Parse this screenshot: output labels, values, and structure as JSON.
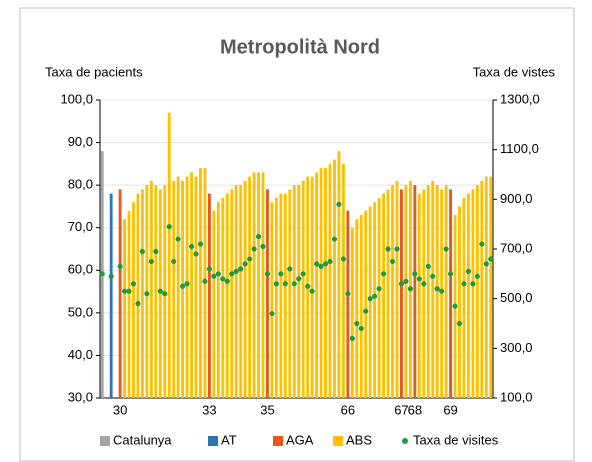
{
  "chart_data": {
    "type": "bar",
    "title": "Metropolità Nord",
    "y_label": "Taxa de pacients",
    "y2_label": "Taxa de vistes",
    "categories": [
      null,
      null,
      null,
      null,
      "30",
      null,
      null,
      null,
      null,
      null,
      null,
      null,
      null,
      null,
      null,
      null,
      null,
      null,
      null,
      null,
      null,
      null,
      null,
      null,
      "33",
      null,
      null,
      null,
      null,
      null,
      null,
      null,
      null,
      null,
      null,
      null,
      null,
      "35",
      null,
      null,
      null,
      null,
      null,
      null,
      null,
      null,
      null,
      null,
      null,
      null,
      null,
      null,
      null,
      null,
      null,
      "66",
      null,
      null,
      null,
      null,
      null,
      null,
      null,
      null,
      null,
      null,
      null,
      "67",
      null,
      null,
      "68",
      null,
      null,
      null,
      null,
      null,
      null,
      null,
      "69",
      null,
      null,
      null,
      null,
      null,
      null,
      null,
      null,
      null
    ],
    "series": [
      {
        "name": "Catalunya",
        "color": "#a5a5a5",
        "values": [
          88,
          null,
          null,
          null,
          null,
          null,
          null,
          null,
          null,
          null,
          null,
          null,
          null,
          null,
          null,
          null,
          null,
          null,
          null,
          null,
          null,
          null,
          null,
          null,
          null,
          null,
          null,
          null,
          null,
          null,
          null,
          null,
          null,
          null,
          null,
          null,
          null,
          null,
          null,
          null,
          null,
          null,
          null,
          null,
          null,
          null,
          null,
          null,
          null,
          null,
          null,
          null,
          null,
          null,
          null,
          null,
          null,
          null,
          null,
          null,
          null,
          null,
          null,
          null,
          null,
          null,
          null,
          null,
          null,
          null,
          null,
          null,
          null,
          null,
          null,
          null,
          null,
          null,
          null,
          null,
          null,
          null,
          null,
          null,
          null,
          null,
          null,
          null
        ]
      },
      {
        "name": "AT",
        "color": "#2e75b6",
        "values": [
          null,
          null,
          78,
          null,
          null,
          null,
          null,
          null,
          null,
          null,
          null,
          null,
          null,
          null,
          null,
          null,
          null,
          null,
          null,
          null,
          null,
          null,
          null,
          null,
          null,
          null,
          null,
          null,
          null,
          null,
          null,
          null,
          null,
          null,
          null,
          null,
          null,
          null,
          null,
          null,
          null,
          null,
          null,
          null,
          null,
          null,
          null,
          null,
          null,
          null,
          null,
          null,
          null,
          null,
          null,
          null,
          null,
          null,
          null,
          null,
          null,
          null,
          null,
          null,
          null,
          null,
          null,
          null,
          null,
          null,
          null,
          null,
          null,
          null,
          null,
          null,
          null,
          null,
          null,
          null,
          null,
          null,
          null,
          null,
          null,
          null,
          null,
          null
        ]
      },
      {
        "name": "AGA",
        "color": "#e8561e",
        "values": [
          null,
          null,
          null,
          null,
          79,
          null,
          null,
          null,
          null,
          null,
          null,
          null,
          null,
          null,
          null,
          null,
          null,
          null,
          null,
          null,
          null,
          null,
          null,
          null,
          78,
          null,
          null,
          null,
          null,
          null,
          null,
          null,
          null,
          null,
          null,
          null,
          null,
          79,
          null,
          null,
          null,
          null,
          null,
          null,
          null,
          null,
          null,
          null,
          null,
          null,
          null,
          null,
          null,
          null,
          null,
          74,
          null,
          null,
          null,
          null,
          null,
          null,
          null,
          null,
          null,
          null,
          null,
          79,
          null,
          null,
          80,
          null,
          null,
          null,
          null,
          null,
          null,
          null,
          79,
          null,
          null,
          null,
          null,
          null,
          null,
          null,
          null,
          null
        ]
      },
      {
        "name": "ABS",
        "color": "#ffc000",
        "values": [
          null,
          null,
          null,
          null,
          null,
          72,
          74,
          76,
          78,
          79,
          80,
          81,
          80,
          79,
          80,
          97,
          81,
          82,
          81,
          82,
          83,
          82,
          84,
          84,
          null,
          74,
          76,
          77,
          78,
          79,
          80,
          80,
          81,
          82,
          83,
          83,
          83,
          null,
          76,
          77,
          78,
          78,
          79,
          80,
          80,
          81,
          82,
          82,
          83,
          84,
          84,
          85,
          86,
          88,
          85,
          null,
          70,
          72,
          73,
          74,
          75,
          76,
          77,
          78,
          79,
          80,
          81,
          null,
          80,
          81,
          null,
          78,
          79,
          80,
          81,
          80,
          79,
          80,
          null,
          73,
          75,
          77,
          78,
          79,
          80,
          81,
          82,
          82
        ]
      },
      {
        "name": "Taxa de visites",
        "color": "#1e9b3c",
        "type": "scatter",
        "axis": "y2",
        "values": [
          600,
          null,
          590,
          null,
          630,
          530,
          530,
          560,
          480,
          690,
          520,
          650,
          690,
          530,
          520,
          790,
          650,
          740,
          550,
          560,
          710,
          680,
          720,
          570,
          620,
          590,
          600,
          580,
          570,
          600,
          610,
          620,
          640,
          660,
          700,
          750,
          710,
          600,
          440,
          560,
          600,
          560,
          620,
          560,
          580,
          600,
          550,
          530,
          640,
          630,
          640,
          650,
          740,
          880,
          660,
          520,
          340,
          400,
          380,
          450,
          500,
          510,
          540,
          600,
          700,
          650,
          700,
          560,
          570,
          540,
          600,
          580,
          560,
          630,
          590,
          540,
          530,
          700,
          600,
          470,
          400,
          560,
          610,
          560,
          590,
          720,
          640,
          660
        ]
      }
    ],
    "ylim": [
      30,
      100
    ],
    "yticks": [
      {
        "value": 30,
        "label": "30,0"
      },
      {
        "value": 40,
        "label": "40,0"
      },
      {
        "value": 50,
        "label": "50,0"
      },
      {
        "value": 60,
        "label": "60,0"
      },
      {
        "value": 70,
        "label": "70,0"
      },
      {
        "value": 80,
        "label": "80,0"
      },
      {
        "value": 90,
        "label": "90,0"
      },
      {
        "value": 100,
        "label": "100,0"
      }
    ],
    "y2lim": [
      100,
      1300
    ],
    "y2ticks": [
      {
        "value": 100,
        "label": "100,0"
      },
      {
        "value": 300,
        "label": "300,0"
      },
      {
        "value": 500,
        "label": "500,0"
      },
      {
        "value": 700,
        "label": "700,0"
      },
      {
        "value": 900,
        "label": "900,0"
      },
      {
        "value": 1100,
        "label": "1100,0"
      },
      {
        "value": 1300,
        "label": "1300,0"
      }
    ],
    "grid": true,
    "legend": "bottom"
  }
}
